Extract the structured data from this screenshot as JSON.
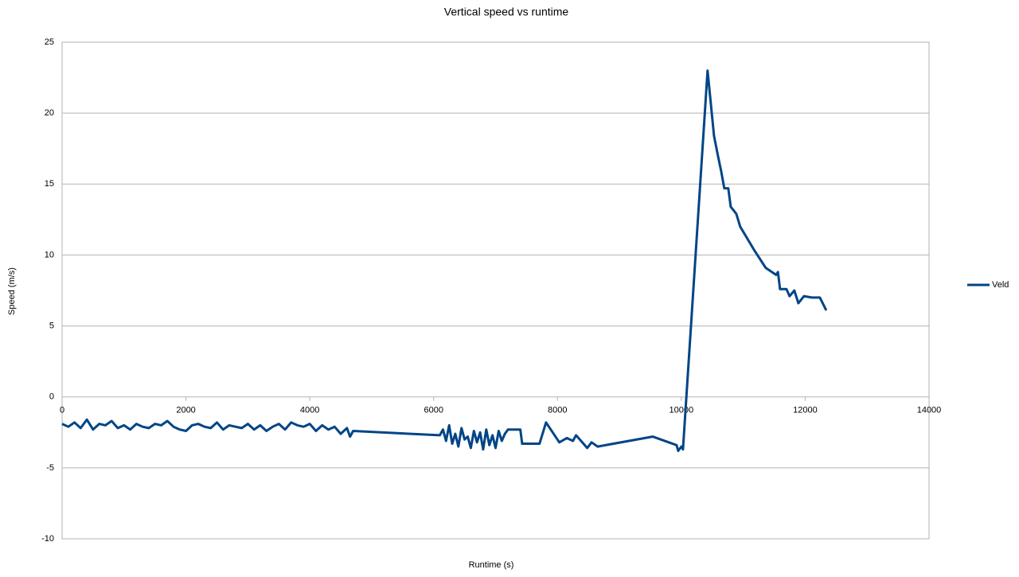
{
  "chart_data": {
    "type": "line",
    "title": "Vertical speed vs runtime",
    "x_label": "Runtime (s)",
    "y_label": "Speed (m/s)",
    "xlim": [
      0,
      14000
    ],
    "xticks": [
      0,
      2000,
      4000,
      6000,
      8000,
      10000,
      12000,
      14000
    ],
    "ylim": [
      -10,
      25
    ],
    "yticks": [
      -10,
      -5,
      0,
      5,
      10,
      15,
      20,
      25
    ],
    "grid": true,
    "series": [
      {
        "name": "Veld",
        "color": "#004586",
        "x": [
          0,
          100,
          200,
          300,
          400,
          500,
          600,
          700,
          800,
          900,
          1000,
          1100,
          1200,
          1300,
          1400,
          1500,
          1600,
          1700,
          1800,
          1900,
          2000,
          2100,
          2200,
          2300,
          2400,
          2500,
          2600,
          2700,
          2800,
          2900,
          3000,
          3100,
          3200,
          3300,
          3400,
          3500,
          3600,
          3700,
          3800,
          3900,
          4000,
          4100,
          4200,
          4300,
          4400,
          4500,
          4600,
          4650,
          4700,
          6100,
          6150,
          6200,
          6250,
          6300,
          6350,
          6400,
          6450,
          6500,
          6550,
          6600,
          6650,
          6700,
          6750,
          6800,
          6850,
          6900,
          6950,
          7000,
          7050,
          7100,
          7150,
          7200,
          7400,
          7430,
          7710,
          7815,
          8030,
          8150,
          8250,
          8300,
          8400,
          8480,
          8550,
          8650,
          9537,
          9923,
          9949,
          10000,
          10026,
          10424,
          10527,
          10591,
          10643,
          10694,
          10758,
          10797,
          10887,
          10951,
          11183,
          11362,
          11530,
          11560,
          11594,
          11697,
          11748,
          11825,
          11890,
          11980,
          12108,
          12237,
          12340
        ],
        "values": [
          -1.9,
          -2.1,
          -1.8,
          -2.2,
          -1.6,
          -2.3,
          -1.9,
          -2.0,
          -1.7,
          -2.2,
          -2.0,
          -2.3,
          -1.9,
          -2.1,
          -2.2,
          -1.9,
          -2.0,
          -1.7,
          -2.1,
          -2.3,
          -2.4,
          -2.0,
          -1.9,
          -2.1,
          -2.2,
          -1.8,
          -2.3,
          -2.0,
          -2.1,
          -2.2,
          -1.9,
          -2.3,
          -2.0,
          -2.4,
          -2.1,
          -1.9,
          -2.3,
          -1.8,
          -2.0,
          -2.1,
          -1.9,
          -2.4,
          -2.0,
          -2.3,
          -2.1,
          -2.6,
          -2.2,
          -2.8,
          -2.4,
          -2.7,
          -2.3,
          -3.1,
          -2.0,
          -3.3,
          -2.6,
          -3.5,
          -2.2,
          -3.0,
          -2.8,
          -3.6,
          -2.4,
          -3.2,
          -2.5,
          -3.7,
          -2.3,
          -3.4,
          -2.7,
          -3.6,
          -2.4,
          -3.1,
          -2.6,
          -2.3,
          -2.3,
          -3.3,
          -3.3,
          -1.8,
          -3.2,
          -2.9,
          -3.1,
          -2.7,
          -3.2,
          -3.6,
          -3.2,
          -3.5,
          -2.8,
          -3.4,
          -3.8,
          -3.5,
          -3.7,
          23.0,
          18.4,
          17.0,
          15.9,
          14.7,
          14.7,
          13.4,
          12.9,
          12.0,
          10.3,
          9.1,
          8.6,
          8.8,
          7.6,
          7.6,
          7.1,
          7.5,
          6.6,
          7.1,
          7.0,
          7.0,
          6.1
        ]
      }
    ]
  }
}
